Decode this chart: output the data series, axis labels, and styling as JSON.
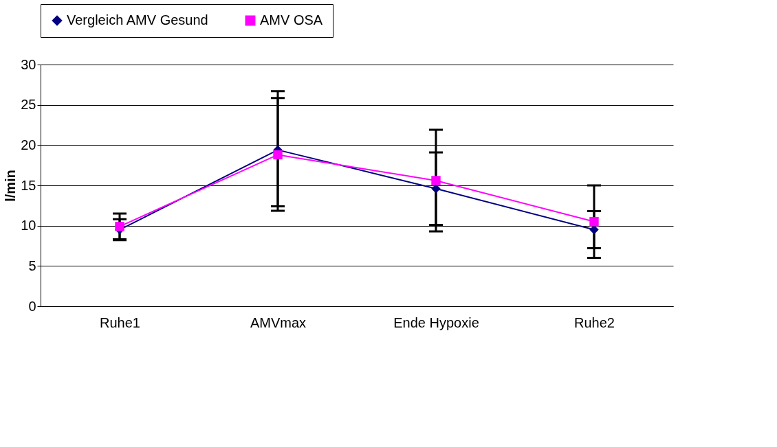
{
  "chart_data": {
    "type": "line",
    "categories": [
      "Ruhe1",
      "AMVmax",
      "Ende Hypoxie",
      "Ruhe2"
    ],
    "ylabel": "l/min",
    "ylim": [
      0,
      30
    ],
    "yticks": [
      0,
      5,
      10,
      15,
      20,
      25,
      30
    ],
    "grid": "y",
    "legend": "top",
    "series": [
      {
        "name": "Vergleich AMV Gesund",
        "color": "#000080",
        "marker": "diamond",
        "values": [
          9.5,
          19.4,
          14.6,
          9.5
        ],
        "errors": [
          [
            8.2,
            10.8
          ],
          [
            12.4,
            26.7
          ],
          [
            10.1,
            19.1
          ],
          [
            7.2,
            11.8
          ]
        ]
      },
      {
        "name": "AMV OSA",
        "color": "#ff00ff",
        "marker": "square",
        "values": [
          9.9,
          18.8,
          15.6,
          10.5
        ],
        "errors": [
          [
            8.3,
            11.5
          ],
          [
            11.85,
            25.85
          ],
          [
            9.3,
            21.9
          ],
          [
            6.0,
            15.0
          ]
        ]
      }
    ]
  }
}
